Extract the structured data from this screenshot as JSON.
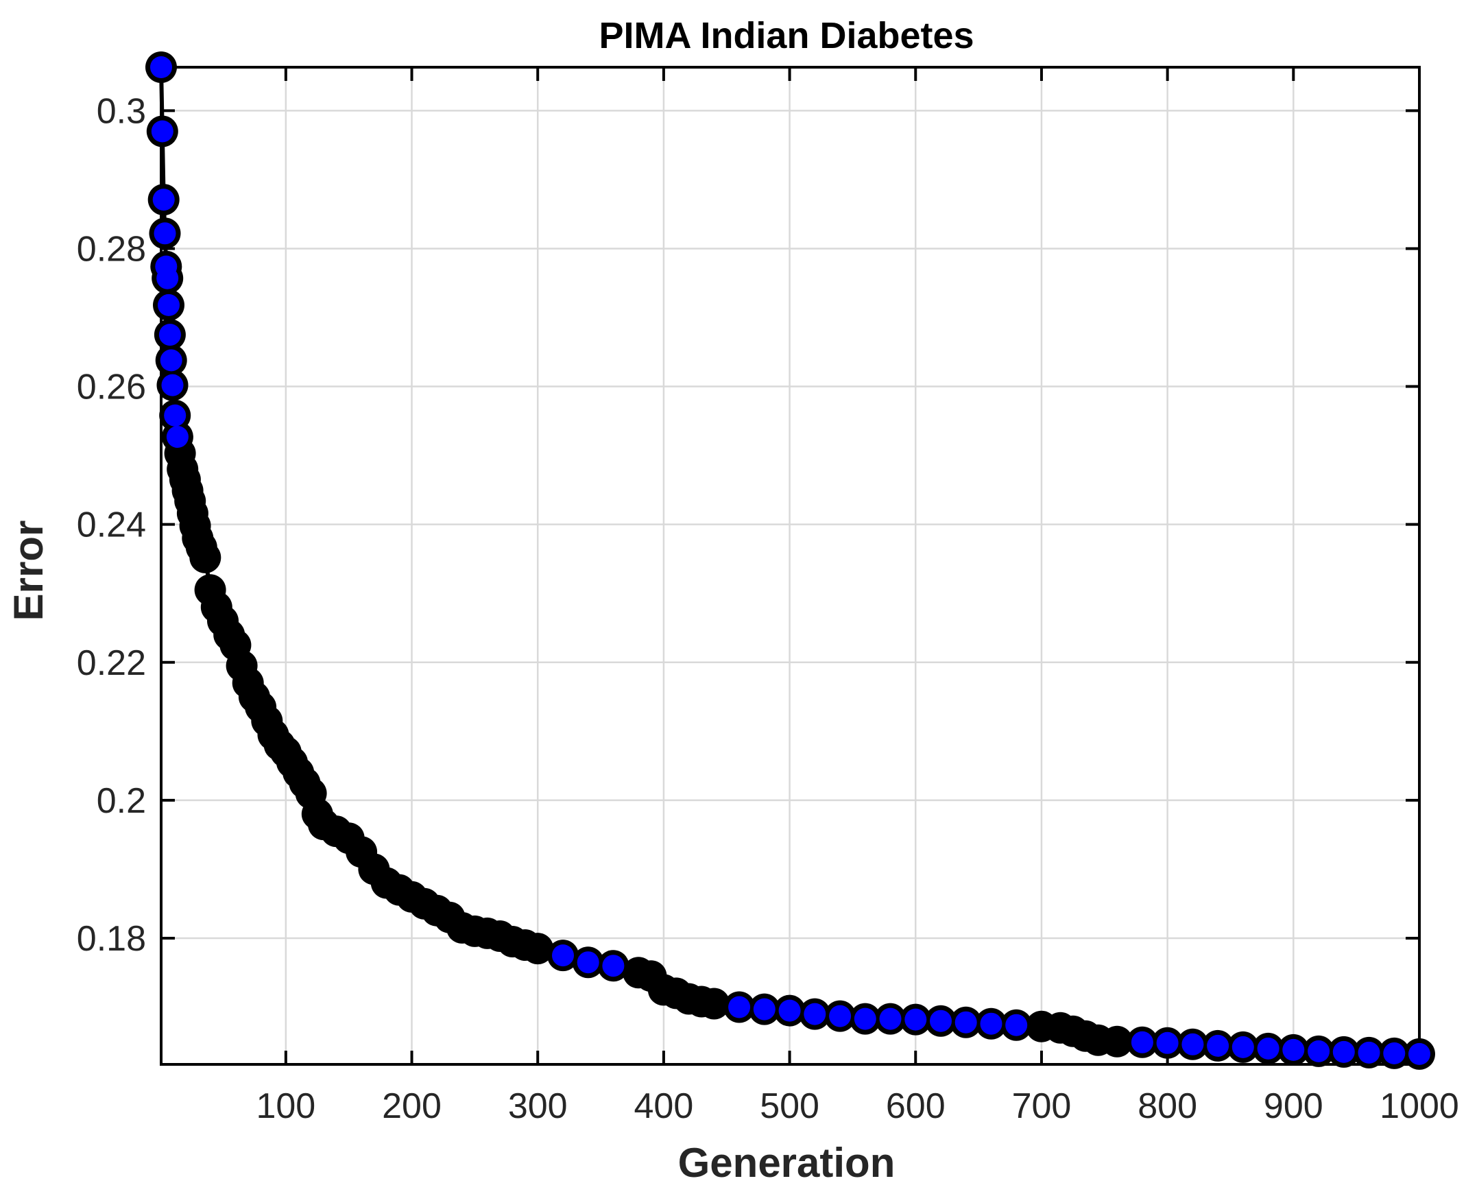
{
  "chart_data": {
    "type": "line",
    "title": "PIMA Indian Diabetes",
    "xlabel": "Generation",
    "ylabel": "Error",
    "xlim": [
      1,
      1000
    ],
    "ylim": [
      0.1617,
      0.3063
    ],
    "grid": true,
    "legend": "none",
    "x_ticks": [
      100,
      200,
      300,
      400,
      500,
      600,
      700,
      800,
      900,
      1000
    ],
    "x_tick_labels": [
      "100",
      "200",
      "300",
      "400",
      "500",
      "600",
      "700",
      "800",
      "900",
      "1000"
    ],
    "y_ticks": [
      0.18,
      0.2,
      0.22,
      0.24,
      0.26,
      0.28,
      0.3
    ],
    "y_tick_labels": [
      "0.18",
      "0.2",
      "0.22",
      "0.24",
      "0.26",
      "0.28",
      "0.3"
    ],
    "series": [
      {
        "name": "Error",
        "line_color": "#000000",
        "marker": "circle",
        "marker_face_color": "#0000ff",
        "marker_edge_color": "#000000",
        "x": [
          1,
          2,
          3,
          4,
          5,
          6,
          7,
          8,
          9,
          10,
          12,
          14,
          16,
          18,
          20,
          22,
          24,
          26,
          28,
          30,
          33,
          36,
          40,
          45,
          50,
          55,
          60,
          65,
          70,
          75,
          80,
          85,
          90,
          95,
          100,
          105,
          110,
          115,
          120,
          125,
          130,
          140,
          150,
          160,
          170,
          180,
          190,
          200,
          210,
          220,
          230,
          240,
          250,
          260,
          270,
          280,
          290,
          300,
          320,
          340,
          360,
          380,
          390,
          400,
          410,
          420,
          430,
          440,
          460,
          480,
          500,
          520,
          540,
          560,
          580,
          600,
          620,
          640,
          660,
          680,
          700,
          715,
          725,
          735,
          745,
          760,
          780,
          800,
          820,
          840,
          860,
          880,
          900,
          920,
          940,
          960,
          980,
          1000
        ],
        "y": [
          0.3063,
          0.297,
          0.2871,
          0.2822,
          0.2774,
          0.2757,
          0.2718,
          0.2675,
          0.2638,
          0.2602,
          0.2558,
          0.2527,
          0.2503,
          0.248,
          0.2465,
          0.2449,
          0.2434,
          0.2416,
          0.2398,
          0.238,
          0.2367,
          0.2352,
          0.2305,
          0.228,
          0.226,
          0.224,
          0.2225,
          0.2195,
          0.217,
          0.215,
          0.2135,
          0.2115,
          0.2095,
          0.208,
          0.207,
          0.2055,
          0.204,
          0.2025,
          0.201,
          0.198,
          0.1965,
          0.1955,
          0.1945,
          0.1925,
          0.19,
          0.188,
          0.187,
          0.186,
          0.185,
          0.184,
          0.183,
          0.1815,
          0.181,
          0.1807,
          0.1803,
          0.1795,
          0.179,
          0.1785,
          0.1775,
          0.1765,
          0.176,
          0.175,
          0.1745,
          0.1725,
          0.172,
          0.1712,
          0.1708,
          0.1705,
          0.17,
          0.1697,
          0.1695,
          0.169,
          0.1687,
          0.1683,
          0.1683,
          0.1682,
          0.168,
          0.1678,
          0.1676,
          0.1674,
          0.1672,
          0.167,
          0.1665,
          0.1658,
          0.1652,
          0.165,
          0.1649,
          0.1648,
          0.1646,
          0.1644,
          0.1642,
          0.164,
          0.1638,
          0.1636,
          0.1635,
          0.1634,
          0.1633,
          0.1632
        ]
      }
    ]
  }
}
